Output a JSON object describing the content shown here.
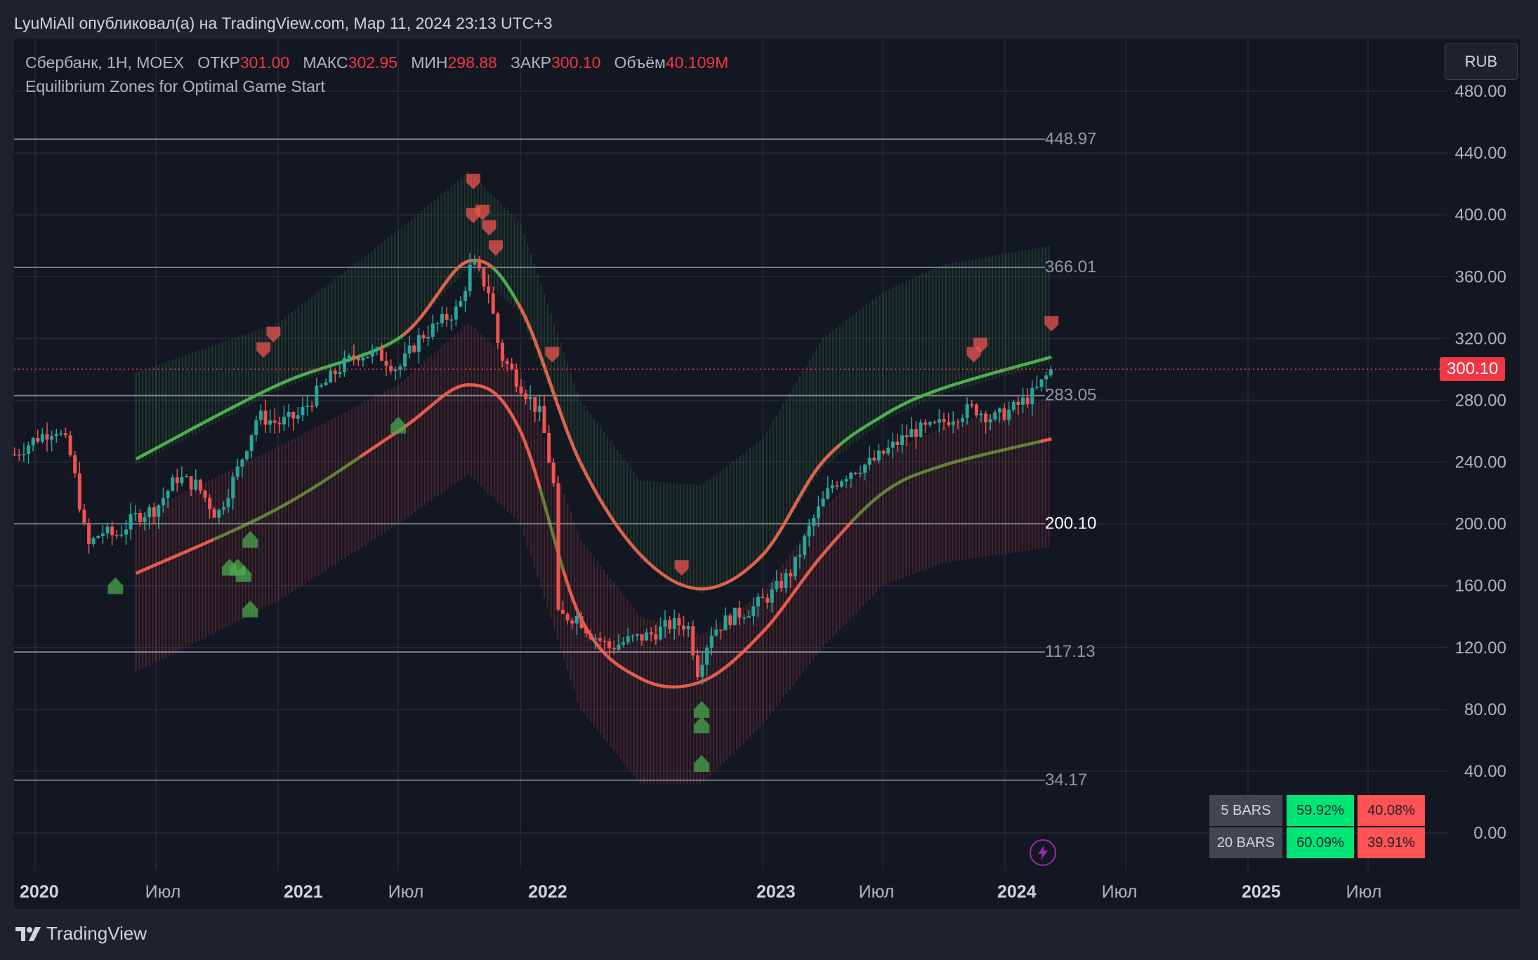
{
  "header": {
    "published": "LyuMiAll опубликовал(а) на TradingView.com, Мар 11, 2024 23:13 UTC+3"
  },
  "legend": {
    "symbol": "Сбербанк, 1Н, MOEX",
    "open_label": "ОТКР",
    "open_value": "301.00",
    "high_label": "МАКС",
    "high_value": "302.95",
    "low_label": "МИН",
    "low_value": "298.88",
    "close_label": "ЗАКР",
    "close_value": "300.10",
    "volume_label": "Объём",
    "volume_value": "40.109M",
    "indicator": "Equilibrium Zones for Optimal Game Start"
  },
  "currency_button": "RUB",
  "current_price": "300.10",
  "footer": {
    "brand": "TradingView"
  },
  "stats_table": {
    "rows": [
      {
        "label": "5 BARS",
        "up": "59.92%",
        "down": "40.08%"
      },
      {
        "label": "20 BARS",
        "up": "60.09%",
        "down": "39.91%"
      }
    ]
  },
  "colors": {
    "background": "#1e222d",
    "chart_bg": "#131722",
    "bull": "#26a69a",
    "bear": "#ef5350",
    "band_green": "#4caf50",
    "band_red": "#ff5252",
    "price_line": "#f23645"
  },
  "icons": [
    "lightning-icon",
    "tradingview-logo-icon"
  ],
  "chart_data": {
    "type": "candlestick",
    "x_axis": {
      "range": [
        "2019-12",
        "2025-09"
      ],
      "ticks": [
        "2020",
        "Июл",
        "2021",
        "Июл",
        "2022",
        "2023",
        "Июл",
        "2024",
        "Июл",
        "2025",
        "Июл"
      ]
    },
    "y_axis": {
      "range": [
        -20,
        500
      ],
      "ticks": [
        "480.00",
        "440.00",
        "400.00",
        "360.00",
        "320.00",
        "280.00",
        "240.00",
        "200.00",
        "160.00",
        "120.00",
        "80.00",
        "40.00",
        "0.00"
      ]
    },
    "levels": [
      {
        "label": "448.97",
        "value": 448.97
      },
      {
        "label": "366.01",
        "value": 366.01
      },
      {
        "label": "283.05",
        "value": 283.05
      },
      {
        "label": "200.10",
        "value": 200.1
      },
      {
        "label": "117.13",
        "value": 117.13
      },
      {
        "label": "34.17",
        "value": 34.17
      }
    ],
    "price": [
      [
        "2019-12-01",
        245
      ],
      [
        "2020-01-01",
        255
      ],
      [
        "2020-02-01",
        262
      ],
      [
        "2020-02-20",
        250
      ],
      [
        "2020-03-01",
        230
      ],
      [
        "2020-03-20",
        185
      ],
      [
        "2020-04-10",
        195
      ],
      [
        "2020-05-01",
        192
      ],
      [
        "2020-06-01",
        205
      ],
      [
        "2020-07-01",
        210
      ],
      [
        "2020-08-01",
        230
      ],
      [
        "2020-09-01",
        225
      ],
      [
        "2020-10-01",
        205
      ],
      [
        "2020-11-01",
        235
      ],
      [
        "2020-12-01",
        270
      ],
      [
        "2021-01-01",
        265
      ],
      [
        "2021-02-01",
        270
      ],
      [
        "2021-03-01",
        285
      ],
      [
        "2021-04-01",
        300
      ],
      [
        "2021-05-01",
        310
      ],
      [
        "2021-06-01",
        310
      ],
      [
        "2021-07-01",
        300
      ],
      [
        "2021-08-01",
        320
      ],
      [
        "2021-09-01",
        330
      ],
      [
        "2021-10-01",
        340
      ],
      [
        "2021-10-20",
        370
      ],
      [
        "2021-11-15",
        350
      ],
      [
        "2021-12-01",
        310
      ],
      [
        "2022-01-01",
        290
      ],
      [
        "2022-02-01",
        270
      ],
      [
        "2022-02-20",
        225
      ],
      [
        "2022-02-24",
        140
      ],
      [
        "2022-03-28",
        140
      ],
      [
        "2022-04-15",
        130
      ],
      [
        "2022-05-15",
        120
      ],
      [
        "2022-06-15",
        125
      ],
      [
        "2022-07-15",
        128
      ],
      [
        "2022-08-15",
        135
      ],
      [
        "2022-09-10",
        135
      ],
      [
        "2022-09-25",
        105
      ],
      [
        "2022-10-15",
        130
      ],
      [
        "2022-11-15",
        140
      ],
      [
        "2022-12-15",
        145
      ],
      [
        "2023-01-15",
        155
      ],
      [
        "2023-02-15",
        170
      ],
      [
        "2023-03-15",
        200
      ],
      [
        "2023-04-15",
        225
      ],
      [
        "2023-05-15",
        235
      ],
      [
        "2023-06-15",
        240
      ],
      [
        "2023-07-15",
        250
      ],
      [
        "2023-08-15",
        260
      ],
      [
        "2023-09-15",
        262
      ],
      [
        "2023-10-15",
        270
      ],
      [
        "2023-11-15",
        275
      ],
      [
        "2023-12-15",
        268
      ],
      [
        "2024-01-15",
        275
      ],
      [
        "2024-02-15",
        285
      ],
      [
        "2024-03-11",
        300.1
      ]
    ],
    "zone_upper_line": [
      [
        "2020-06-01",
        242
      ],
      [
        "2021-01-01",
        290
      ],
      [
        "2021-07-01",
        320
      ],
      [
        "2021-10-15",
        370
      ],
      [
        "2022-01-01",
        340
      ],
      [
        "2022-04-01",
        240
      ],
      [
        "2022-07-01",
        180
      ],
      [
        "2022-10-01",
        158
      ],
      [
        "2023-01-01",
        180
      ],
      [
        "2023-04-01",
        240
      ],
      [
        "2023-07-01",
        270
      ],
      [
        "2023-10-01",
        288
      ],
      [
        "2024-03-11",
        308
      ]
    ],
    "zone_lower_line": [
      [
        "2020-06-01",
        168
      ],
      [
        "2021-01-01",
        210
      ],
      [
        "2021-07-01",
        260
      ],
      [
        "2021-10-15",
        290
      ],
      [
        "2022-01-01",
        260
      ],
      [
        "2022-04-01",
        140
      ],
      [
        "2022-07-01",
        100
      ],
      [
        "2022-10-01",
        98
      ],
      [
        "2023-01-01",
        130
      ],
      [
        "2023-04-01",
        180
      ],
      [
        "2023-07-01",
        220
      ],
      [
        "2023-10-01",
        238
      ],
      [
        "2024-03-11",
        255
      ]
    ],
    "green_band_top": [
      [
        "2020-06-01",
        298
      ],
      [
        "2021-01-01",
        330
      ],
      [
        "2021-07-01",
        390
      ],
      [
        "2021-10-15",
        428
      ],
      [
        "2022-01-01",
        395
      ],
      [
        "2022-04-01",
        280
      ],
      [
        "2022-07-01",
        228
      ],
      [
        "2022-10-01",
        225
      ],
      [
        "2023-01-01",
        255
      ],
      [
        "2023-04-01",
        320
      ],
      [
        "2023-07-01",
        350
      ],
      [
        "2023-10-01",
        368
      ],
      [
        "2024-03-11",
        380
      ]
    ],
    "red_band_bottom": [
      [
        "2020-06-01",
        104
      ],
      [
        "2021-01-01",
        150
      ],
      [
        "2021-07-01",
        200
      ],
      [
        "2021-10-15",
        232
      ],
      [
        "2022-01-01",
        200
      ],
      [
        "2022-04-01",
        80
      ],
      [
        "2022-07-01",
        32
      ],
      [
        "2022-10-01",
        32
      ],
      [
        "2023-01-01",
        70
      ],
      [
        "2023-04-01",
        120
      ],
      [
        "2023-07-01",
        160
      ],
      [
        "2023-10-01",
        175
      ],
      [
        "2024-03-11",
        185
      ]
    ],
    "sell_markers": [
      [
        "2020-12-10",
        313
      ],
      [
        "2020-12-25",
        323
      ],
      [
        "2021-10-22",
        422
      ],
      [
        "2021-10-22",
        400
      ],
      [
        "2021-11-05",
        402
      ],
      [
        "2021-11-15",
        392
      ],
      [
        "2021-11-25",
        379
      ],
      [
        "2022-02-18",
        310
      ],
      [
        "2022-09-01",
        172
      ],
      [
        "2023-11-15",
        310
      ],
      [
        "2023-11-25",
        316
      ],
      [
        "2024-03-11",
        330
      ]
    ],
    "buy_markers": [
      [
        "2020-05-01",
        160
      ],
      [
        "2020-10-20",
        172
      ],
      [
        "2020-11-01",
        172
      ],
      [
        "2020-11-10",
        168
      ],
      [
        "2020-11-20",
        190
      ],
      [
        "2020-11-20",
        145
      ],
      [
        "2021-07-01",
        264
      ],
      [
        "2022-10-01",
        80
      ],
      [
        "2022-10-01",
        70
      ],
      [
        "2022-10-01",
        45
      ]
    ]
  }
}
